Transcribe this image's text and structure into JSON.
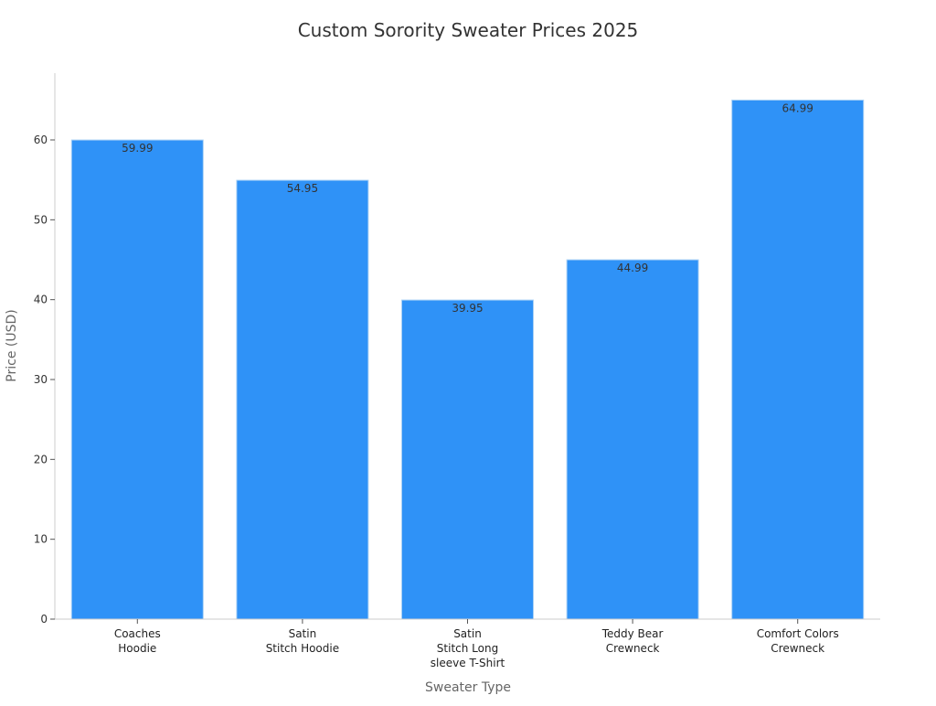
{
  "chart_data": {
    "type": "bar",
    "title": "Custom Sorority Sweater Prices 2025",
    "xlabel": "Sweater Type",
    "ylabel": "Price (USD)",
    "categories": [
      [
        "Coaches",
        "Hoodie"
      ],
      [
        "Satin",
        "Stitch Hoodie"
      ],
      [
        "Satin",
        "Stitch Long",
        "sleeve T-Shirt"
      ],
      [
        "Teddy Bear",
        "Crewneck"
      ],
      [
        "Comfort Colors",
        "Crewneck"
      ]
    ],
    "values": [
      59.99,
      54.95,
      39.95,
      44.99,
      64.99
    ],
    "data_labels": [
      "59.99",
      "54.95",
      "39.95",
      "44.99",
      "64.99"
    ],
    "yticks": [
      0,
      10,
      20,
      30,
      40,
      50,
      60
    ],
    "ylim": [
      0,
      68.2
    ],
    "grid": false,
    "bar_color": "#2f92f7",
    "bar_edge_color": "#a9d0f5"
  }
}
